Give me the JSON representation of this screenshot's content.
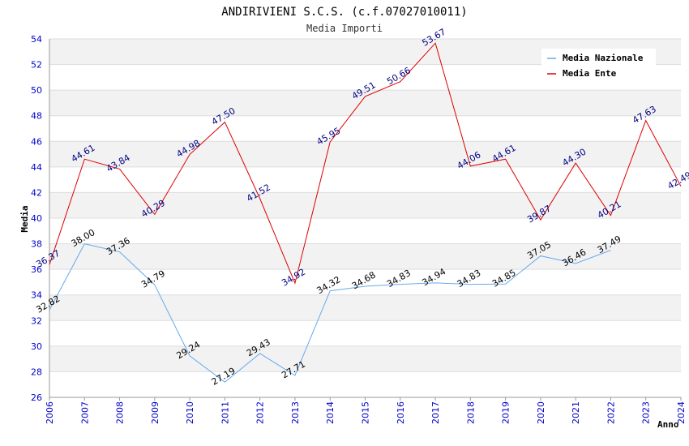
{
  "chart_data": {
    "type": "line",
    "title": "ANDIRIVIENI S.C.S. (c.f.07027010011)",
    "subtitle": "Media Importi",
    "xlabel": "Anno",
    "ylabel": "Media",
    "ylim": [
      26,
      54
    ],
    "yticks": [
      26,
      28,
      30,
      32,
      34,
      36,
      38,
      40,
      42,
      44,
      46,
      48,
      50,
      52,
      54
    ],
    "categories": [
      "2006",
      "2007",
      "2008",
      "2009",
      "2010",
      "2011",
      "2012",
      "2013",
      "2014",
      "2015",
      "2016",
      "2017",
      "2018",
      "2019",
      "2020",
      "2021",
      "2022",
      "2023",
      "2024"
    ],
    "legend_position": "top-right",
    "series": [
      {
        "name": "Media Nazionale",
        "color": "#66aaee",
        "values": [
          32.82,
          38.0,
          37.36,
          34.79,
          29.24,
          27.19,
          29.43,
          27.71,
          34.32,
          34.68,
          34.83,
          34.94,
          34.83,
          34.85,
          37.05,
          36.46,
          37.49,
          null,
          null
        ],
        "labels": [
          "32.82",
          "38.00",
          "37.36",
          "34.79",
          "29.24",
          "27.19",
          "29.43",
          "27.71",
          "34.32",
          "34.68",
          "34.83",
          "34.94",
          "34.83",
          "34.85",
          "37.05",
          "36.46",
          "37.49",
          null,
          null
        ]
      },
      {
        "name": "Media Ente",
        "color": "#dd0000",
        "values": [
          36.37,
          44.61,
          43.84,
          40.29,
          44.98,
          47.5,
          41.52,
          34.92,
          45.95,
          49.51,
          50.66,
          53.67,
          44.06,
          44.61,
          39.87,
          44.3,
          40.21,
          47.63,
          42.49
        ],
        "labels": [
          "36.37",
          "44.61",
          "43.84",
          "40.29",
          "44.98",
          "47.50",
          "41.52",
          "34.92",
          "45.95",
          "49.51",
          "50.66",
          "53.67",
          "44.06",
          "44.61",
          "39.87",
          "44.30",
          "40.21",
          "47.63",
          "42.49"
        ]
      }
    ]
  }
}
